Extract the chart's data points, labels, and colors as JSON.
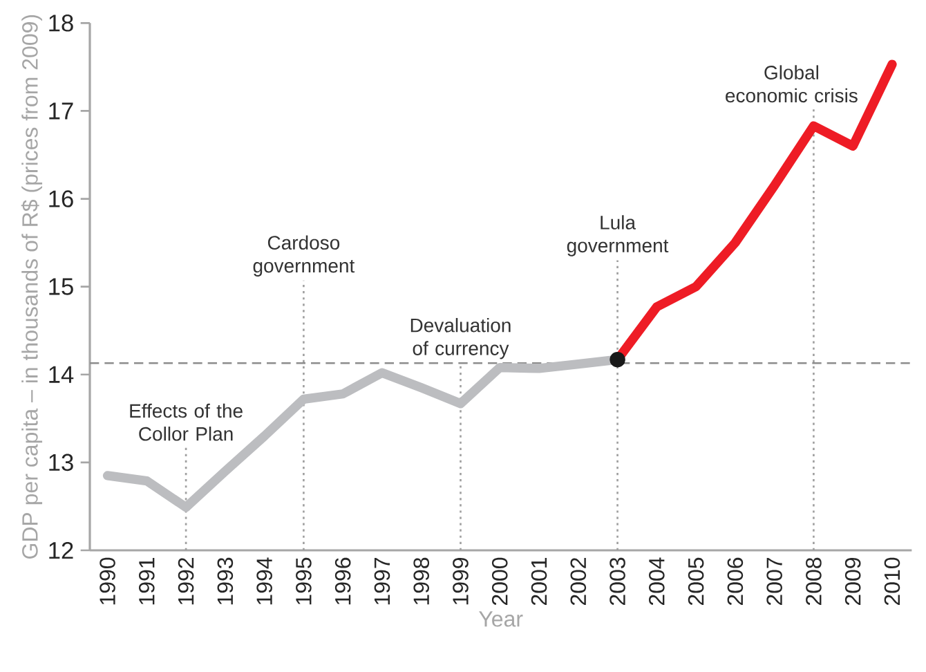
{
  "chart_data": {
    "type": "line",
    "xlabel": "Year",
    "ylabel": "GDP per capita – in thousands of R$ (prices from 2009)",
    "xlim": [
      1989.55,
      2010.5
    ],
    "ylim": [
      12,
      18
    ],
    "xticks": [
      1990,
      1991,
      1992,
      1993,
      1994,
      1995,
      1996,
      1997,
      1998,
      1999,
      2000,
      2001,
      2002,
      2003,
      2004,
      2005,
      2006,
      2007,
      2008,
      2009,
      2010
    ],
    "yticks": [
      12,
      13,
      14,
      15,
      16,
      17,
      18
    ],
    "grid": false,
    "series": [
      {
        "color": "#bcbdc0",
        "marker": "none",
        "x": [
          1990,
          1991,
          1992,
          1993,
          1994,
          1995,
          1996,
          1997,
          1998,
          1999,
          2000,
          2001,
          2002,
          2003
        ],
        "values": [
          12.85,
          12.79,
          12.49,
          12.9,
          13.3,
          13.72,
          13.78,
          14.02,
          13.85,
          13.67,
          14.08,
          14.07,
          14.12,
          14.17
        ]
      },
      {
        "color": "#ee1c25",
        "marker": "none",
        "x": [
          2003,
          2004,
          2005,
          2006,
          2007,
          2008,
          2009,
          2010
        ],
        "values": [
          14.17,
          14.77,
          15.0,
          15.5,
          16.15,
          16.83,
          16.6,
          17.53
        ]
      },
      {
        "type": "scatter",
        "color": "#1a1a1a",
        "marker": "circle",
        "x": [
          2003
        ],
        "values": [
          14.17
        ]
      }
    ],
    "ref_lines": [
      {
        "axis": "y",
        "value": 14.13,
        "color": "#8c8c8c",
        "line_style": "dashed"
      },
      {
        "axis": "x",
        "value": 1992,
        "label": "Effects of the Collor Plan",
        "color": "#a0a0a0",
        "line_style": "dotted"
      },
      {
        "axis": "x",
        "value": 1995,
        "label": "Cardoso government",
        "color": "#a0a0a0",
        "line_style": "dotted"
      },
      {
        "axis": "x",
        "value": 1999,
        "label": "Devaluation of currency",
        "color": "#a0a0a0",
        "line_style": "dotted"
      },
      {
        "axis": "x",
        "value": 2003,
        "label": "Lula government",
        "color": "#a0a0a0",
        "line_style": "dotted"
      },
      {
        "axis": "x",
        "value": 2008,
        "label": "Global economic crisis",
        "color": "#a0a0a0",
        "line_style": "dotted"
      }
    ]
  }
}
